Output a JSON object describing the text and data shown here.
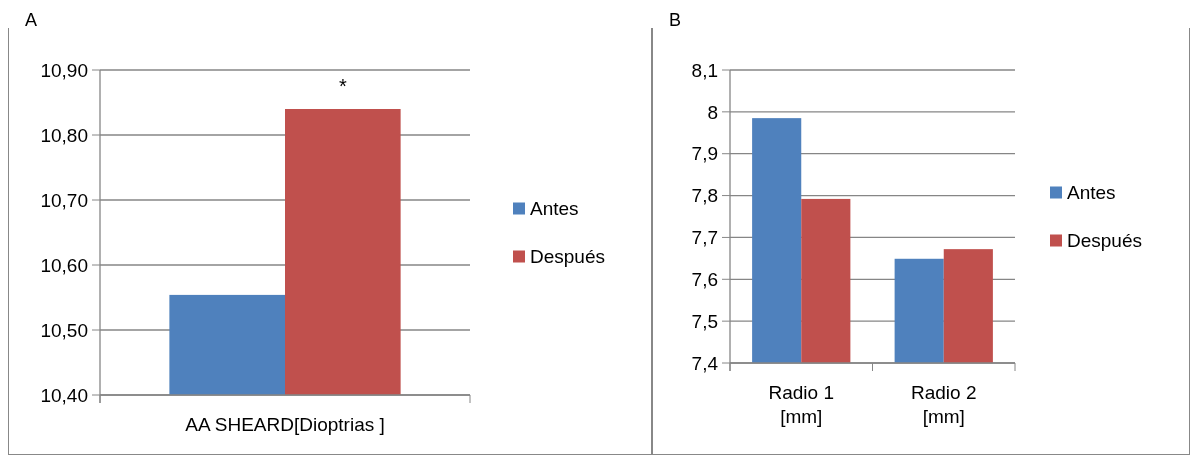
{
  "chart_data": [
    {
      "type": "bar",
      "title": "A",
      "categories": [
        "AA SHEARD[Dioptrias ]"
      ],
      "series": [
        {
          "name": "Antes",
          "color": "#4f81bd",
          "values": [
            10.554
          ]
        },
        {
          "name": "Después",
          "color": "#c0504d",
          "values": [
            10.84
          ]
        }
      ],
      "ylim": [
        10.4,
        10.9
      ],
      "yticks": [
        {
          "value": 10.4,
          "label": "10,40"
        },
        {
          "value": 10.5,
          "label": "10,50"
        },
        {
          "value": 10.6,
          "label": "10,60"
        },
        {
          "value": 10.7,
          "label": "10,70"
        },
        {
          "value": 10.8,
          "label": "10,80"
        },
        {
          "value": 10.9,
          "label": "10,90"
        }
      ],
      "grid": "y",
      "legend": "right",
      "annotations": [
        "*"
      ]
    },
    {
      "type": "bar",
      "title": "B",
      "categories": [
        "Radio 1 [mm]",
        "Radio 2 [mm]"
      ],
      "series": [
        {
          "name": "Antes",
          "color": "#4f81bd",
          "values": [
            7.985,
            7.649
          ]
        },
        {
          "name": "Después",
          "color": "#c0504d",
          "values": [
            7.792,
            7.672
          ]
        }
      ],
      "ylim": [
        7.4,
        8.1
      ],
      "yticks": [
        {
          "value": 7.4,
          "label": "7,4"
        },
        {
          "value": 7.5,
          "label": "7,5"
        },
        {
          "value": 7.6,
          "label": "7,6"
        },
        {
          "value": 7.7,
          "label": "7,7"
        },
        {
          "value": 7.8,
          "label": "7,8"
        },
        {
          "value": 8,
          "label": "8"
        },
        {
          "value": 7.9,
          "label": "7,9"
        },
        {
          "value": 8.1,
          "label": "8,1"
        }
      ],
      "grid": "y",
      "legend": "right"
    }
  ]
}
